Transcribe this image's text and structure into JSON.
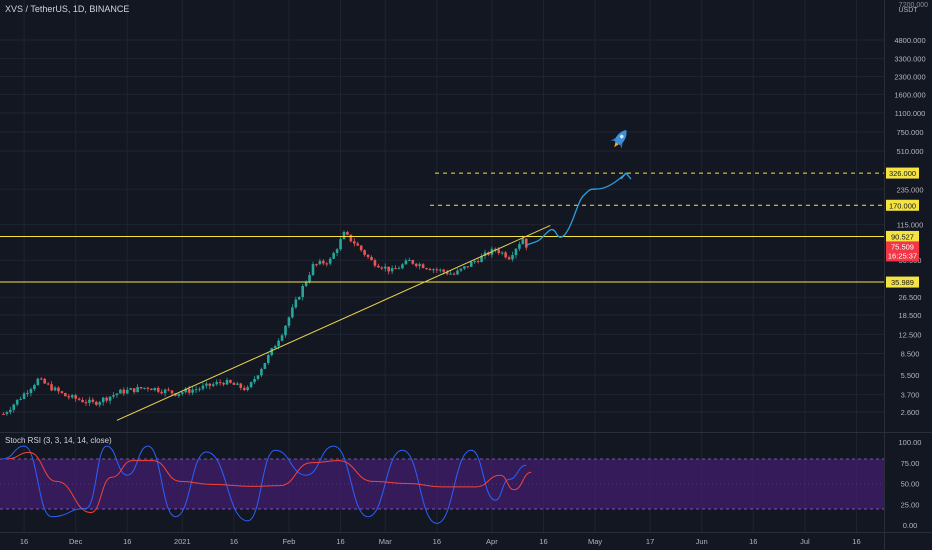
{
  "header": {
    "title": "XVS / TetherUS, 1D, BINANCE"
  },
  "indicator": {
    "title": "Stoch RSI (3, 3, 14, 14, close)"
  },
  "colors": {
    "background": "#131722",
    "grid": "#1f2431",
    "up": "#26a69a",
    "down": "#ef5350",
    "support_line": "#f5e342",
    "trendline": "#e8d44d",
    "projection": "#2ca0dc",
    "stoch_k": "#2962ff",
    "stoch_d": "#f44336",
    "stoch_band": "#4a1d7a",
    "price_tag": "#f23645",
    "level_tag": "#f5e342"
  },
  "price_axis": {
    "currency": "USDT",
    "top_label": "7200.000",
    "ticks": [
      "4800.000",
      "3300.000",
      "2300.000",
      "1600.000",
      "1100.000",
      "750.000",
      "510.000",
      "235.000",
      "115.000",
      "56.000",
      "26.500",
      "18.500",
      "12.500",
      "8.500",
      "5.500",
      "3.700",
      "2.600"
    ]
  },
  "price_tags": {
    "current_price": "75.509",
    "countdown": "16:25:37",
    "levels": [
      "326.000",
      "170.000",
      "90.527",
      "35.989"
    ],
    "partial_labels": [
      "56.000",
      "36.000"
    ]
  },
  "stoch_axis": {
    "ticks": [
      "100.00",
      "75.00",
      "50.00",
      "25.00",
      "0.00"
    ]
  },
  "time_axis": {
    "labels": [
      "16",
      "Dec",
      "16",
      "2021",
      "16",
      "Feb",
      "16",
      "Mar",
      "16",
      "Apr",
      "16",
      "May",
      "17",
      "Jun",
      "16",
      "Jul",
      "16"
    ]
  },
  "icons": [
    "rocket-icon"
  ],
  "chart_data": {
    "type": "candlestick",
    "title": "XVS / TetherUS, 1D, BINANCE",
    "y_scale": "log",
    "ylim": [
      2.0,
      7200
    ],
    "x_range": [
      "2020-11-09",
      "2021-07-24"
    ],
    "series": [
      {
        "name": "XVS / TetherUS",
        "approx_close_path": [
          {
            "x": "2020-11-10",
            "y": 2.5
          },
          {
            "x": "2020-11-15",
            "y": 3.5
          },
          {
            "x": "2020-11-20",
            "y": 5.0
          },
          {
            "x": "2020-11-28",
            "y": 3.6
          },
          {
            "x": "2020-12-06",
            "y": 3.1
          },
          {
            "x": "2020-12-14",
            "y": 3.9
          },
          {
            "x": "2020-12-22",
            "y": 4.3
          },
          {
            "x": "2020-12-30",
            "y": 3.8
          },
          {
            "x": "2021-01-06",
            "y": 4.2
          },
          {
            "x": "2021-01-13",
            "y": 4.8
          },
          {
            "x": "2021-01-20",
            "y": 4.1
          },
          {
            "x": "2021-01-26",
            "y": 8.0
          },
          {
            "x": "2021-01-30",
            "y": 13.0
          },
          {
            "x": "2021-02-04",
            "y": 28.0
          },
          {
            "x": "2021-02-08",
            "y": 50.0
          },
          {
            "x": "2021-02-13",
            "y": 56.0
          },
          {
            "x": "2021-02-17",
            "y": 95.0
          },
          {
            "x": "2021-02-20",
            "y": 80.0
          },
          {
            "x": "2021-02-25",
            "y": 55.0
          },
          {
            "x": "2021-03-03",
            "y": 45.0
          },
          {
            "x": "2021-03-08",
            "y": 55.0
          },
          {
            "x": "2021-03-14",
            "y": 48.0
          },
          {
            "x": "2021-03-21",
            "y": 42.0
          },
          {
            "x": "2021-03-27",
            "y": 55.0
          },
          {
            "x": "2021-04-02",
            "y": 70.0
          },
          {
            "x": "2021-04-06",
            "y": 60.0
          },
          {
            "x": "2021-04-10",
            "y": 88.0
          },
          {
            "x": "2021-04-11",
            "y": 75.509
          }
        ]
      },
      {
        "name": "Stoch RSI",
        "ylim": [
          0,
          100
        ],
        "approx_k": [
          {
            "x": "2020-11-10",
            "y": 80
          },
          {
            "x": "2020-11-16",
            "y": 95
          },
          {
            "x": "2020-11-24",
            "y": 10
          },
          {
            "x": "2020-12-04",
            "y": 20
          },
          {
            "x": "2020-12-10",
            "y": 95
          },
          {
            "x": "2020-12-16",
            "y": 60
          },
          {
            "x": "2020-12-22",
            "y": 95
          },
          {
            "x": "2020-12-30",
            "y": 10
          },
          {
            "x": "2021-01-08",
            "y": 88
          },
          {
            "x": "2021-01-20",
            "y": 5
          },
          {
            "x": "2021-01-28",
            "y": 90
          },
          {
            "x": "2021-02-06",
            "y": 60
          },
          {
            "x": "2021-02-14",
            "y": 95
          },
          {
            "x": "2021-02-24",
            "y": 10
          },
          {
            "x": "2021-03-06",
            "y": 90
          },
          {
            "x": "2021-03-16",
            "y": 2
          },
          {
            "x": "2021-03-26",
            "y": 90
          },
          {
            "x": "2021-04-02",
            "y": 30
          },
          {
            "x": "2021-04-06",
            "y": 55
          },
          {
            "x": "2021-04-11",
            "y": 72
          }
        ]
      }
    ],
    "horizontal_levels": [
      326.0,
      170.0,
      90.527,
      35.989
    ],
    "trendline": [
      {
        "x": "2020-12-13",
        "y": 2.2
      },
      {
        "x": "2021-04-18",
        "y": 113
      }
    ],
    "projection_target": 326.0,
    "stoch_band": [
      20,
      80
    ]
  }
}
